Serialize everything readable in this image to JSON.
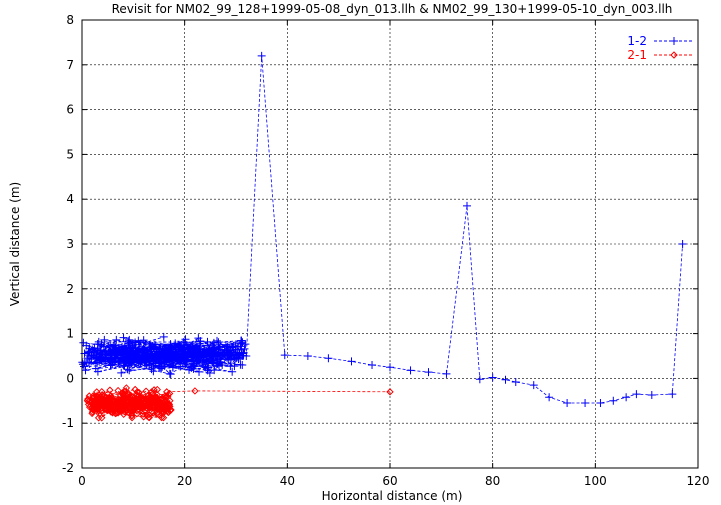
{
  "chart_data": {
    "type": "scatter",
    "title": "Revisit for NM02_99_128+1999-05-08_dyn_013.llh & NM02_99_130+1999-05-10_dyn_003.llh",
    "xlabel": "Horizontal distance (m)",
    "ylabel": "Vertical distance (m)",
    "xlim": [
      0,
      120
    ],
    "ylim": [
      -2,
      8
    ],
    "x_ticks": [
      "0",
      "20",
      "40",
      "60",
      "80",
      "100",
      "120"
    ],
    "y_ticks": [
      "-2",
      "-1",
      "0",
      "1",
      "2",
      "3",
      "4",
      "5",
      "6",
      "7",
      "8"
    ],
    "grid": true,
    "legend_position": "top-right",
    "series": [
      {
        "name": "1-2",
        "color": "#0000ff",
        "marker": "plus",
        "line": "dashed",
        "points": [
          [
            32,
            0.5
          ],
          [
            35,
            7.2
          ],
          [
            39.5,
            0.52
          ],
          [
            44,
            0.5
          ],
          [
            48,
            0.45
          ],
          [
            52.5,
            0.38
          ],
          [
            56.5,
            0.3
          ],
          [
            60,
            0.25
          ],
          [
            64,
            0.18
          ],
          [
            67.5,
            0.14
          ],
          [
            71,
            0.1
          ],
          [
            75,
            3.85
          ],
          [
            77.5,
            -0.02
          ],
          [
            80,
            0.02
          ],
          [
            82.5,
            -0.03
          ],
          [
            84.5,
            -0.08
          ],
          [
            88,
            -0.15
          ],
          [
            91,
            -0.42
          ],
          [
            94.5,
            -0.55
          ],
          [
            98,
            -0.55
          ],
          [
            101,
            -0.55
          ],
          [
            103.5,
            -0.5
          ],
          [
            106,
            -0.42
          ],
          [
            108,
            -0.35
          ],
          [
            111,
            -0.37
          ],
          [
            115,
            -0.35
          ],
          [
            117,
            3.0
          ]
        ],
        "cluster": {
          "x_range": [
            0,
            32
          ],
          "y_range": [
            -0.1,
            1.15
          ],
          "point_count": 380
        }
      },
      {
        "name": "2-1",
        "color": "#ff0000",
        "marker": "diamond",
        "line": "dashed",
        "points": [
          [
            16.5,
            -0.3
          ],
          [
            22,
            -0.28
          ],
          [
            60,
            -0.3
          ]
        ],
        "cluster": {
          "x_range": [
            1,
            17.5
          ],
          "y_range": [
            -1.1,
            -0.05
          ],
          "point_count": 260
        }
      }
    ]
  }
}
